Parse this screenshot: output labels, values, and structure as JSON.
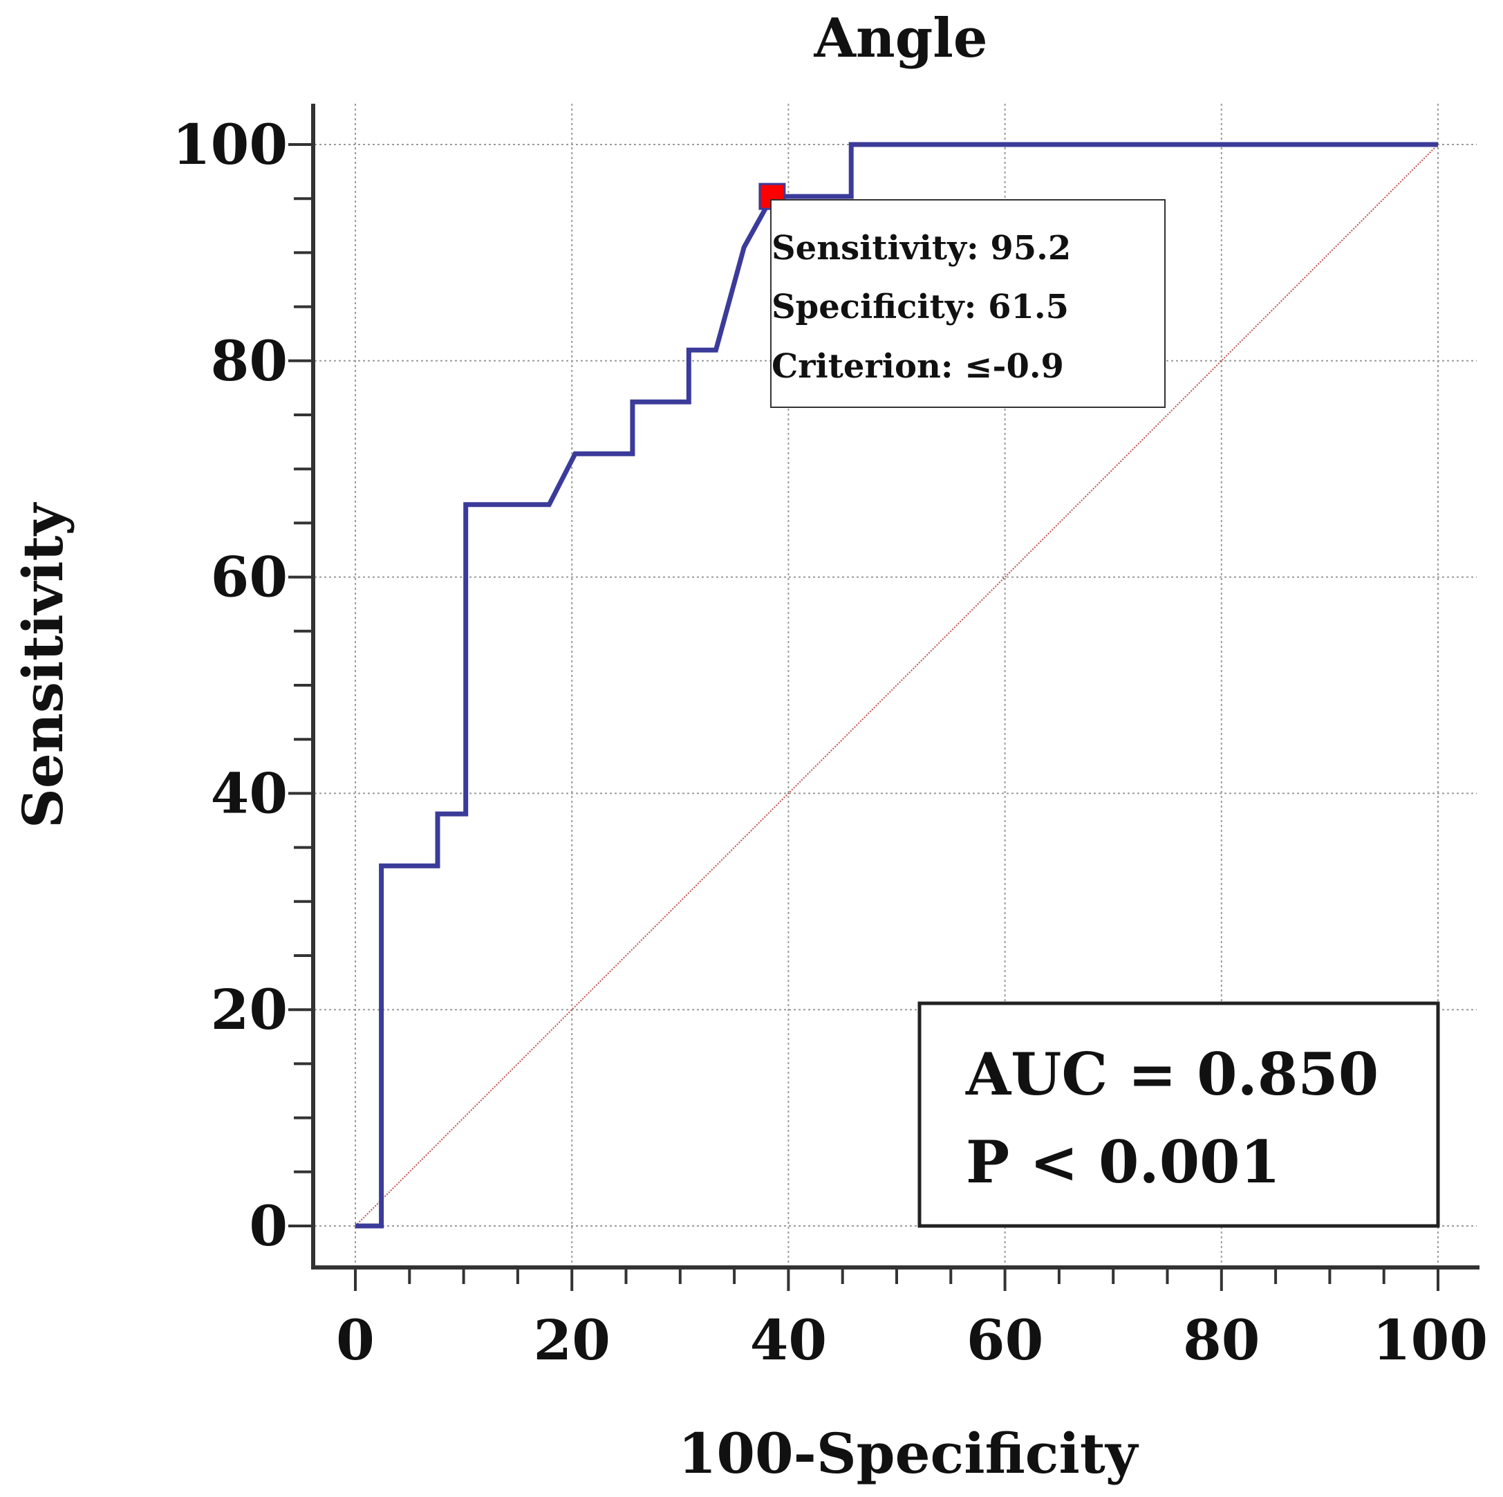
{
  "chart_data": {
    "type": "line",
    "title": "Angle",
    "xlabel": "100-Specificity",
    "ylabel": "Sensitivity",
    "xlim": [
      0,
      100
    ],
    "ylim": [
      0,
      100
    ],
    "xticks": [
      0,
      20,
      40,
      60,
      80,
      100
    ],
    "yticks": [
      0,
      20,
      40,
      60,
      80,
      100
    ],
    "grid": true,
    "series": [
      {
        "x": [
          0,
          2.4,
          2.4,
          7.6,
          7.6,
          10.2,
          10.2,
          17.9,
          20.3,
          25.6,
          25.6,
          30.8,
          30.8,
          33.3,
          35.9,
          38.5,
          41.0,
          45.8,
          45.8,
          100
        ],
        "y": [
          0,
          0,
          33.3,
          33.3,
          38.1,
          38.1,
          66.7,
          66.7,
          71.4,
          71.4,
          76.2,
          76.2,
          81.0,
          81.0,
          90.5,
          95.2,
          95.2,
          95.2,
          100,
          100
        ]
      },
      {
        "x": [
          0,
          100
        ],
        "y": [
          0,
          100
        ]
      }
    ],
    "criterion_point": {
      "x": 38.5,
      "y": 95.2
    },
    "annotation_lines": [
      "Sensitivity: 95.2",
      "Specificity: 61.5",
      "Criterion: ≤-0.9"
    ],
    "stats_lines": [
      "AUC = 0.850",
      "P < 0.001"
    ],
    "colors": {
      "roc": "#3b3b9a",
      "diagonal": "#b8524d",
      "marker": "#ff0000",
      "axis": "#333333",
      "grid": "#9a9a9a"
    }
  }
}
